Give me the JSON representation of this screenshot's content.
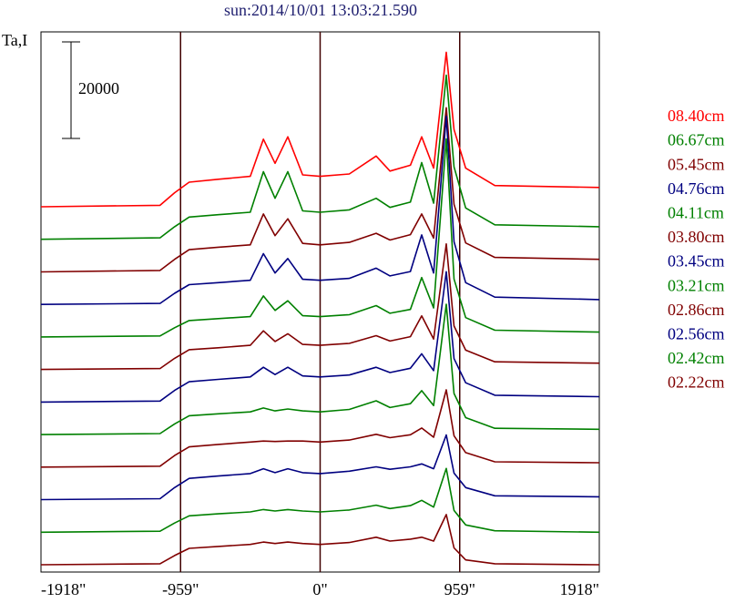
{
  "chart_data": {
    "type": "line",
    "title": "sun:2014/10/01 13:03:21.590",
    "ylabel": "Ta,I",
    "scale_bar": 20000,
    "xlim": [
      -1918,
      1918
    ],
    "xticks": [
      {
        "value": -1918,
        "label": "-1918\""
      },
      {
        "value": -959,
        "label": "-959\""
      },
      {
        "value": 0,
        "label": "0\""
      },
      {
        "value": 959,
        "label": "959\""
      },
      {
        "value": 1918,
        "label": "1918\""
      }
    ],
    "x": [
      -1918,
      -1100,
      -1000,
      -900,
      -700,
      -480,
      -390,
      -310,
      -222,
      -120,
      0,
      200,
      385,
      480,
      620,
      698,
      780,
      867,
      920,
      1000,
      1200,
      1918
    ],
    "series": [
      {
        "name": "08.40cm",
        "color": "#ff0000",
        "values": [
          0,
          300,
          2900,
          5100,
          5700,
          6300,
          14000,
          9000,
          14500,
          6600,
          6300,
          6800,
          10500,
          7400,
          8600,
          14500,
          8000,
          32000,
          16000,
          8000,
          4400,
          4000
        ]
      },
      {
        "name": "06.67cm",
        "color": "#008000",
        "values": [
          0,
          300,
          2600,
          4600,
          5100,
          5600,
          14000,
          8500,
          14000,
          5900,
          5600,
          6100,
          8500,
          6600,
          7700,
          15900,
          7500,
          34000,
          15000,
          6500,
          3000,
          2600
        ]
      },
      {
        "name": "05.45cm",
        "color": "#800000",
        "values": [
          0,
          300,
          2600,
          4600,
          5100,
          5600,
          12000,
          7500,
          11000,
          5900,
          5600,
          6100,
          8000,
          6600,
          7700,
          12000,
          7000,
          34000,
          14000,
          6000,
          3000,
          2600
        ]
      },
      {
        "name": "04.76cm",
        "color": "#000080",
        "values": [
          0,
          200,
          2300,
          4100,
          4500,
          5000,
          10500,
          6500,
          9500,
          5200,
          5000,
          5400,
          7500,
          5900,
          6800,
          14400,
          6500,
          39000,
          13000,
          4500,
          1500,
          1000
        ]
      },
      {
        "name": "04.11cm",
        "color": "#008000",
        "values": [
          0,
          200,
          1900,
          3400,
          3800,
          4200,
          8500,
          5500,
          7500,
          4400,
          4200,
          4600,
          6500,
          4900,
          5700,
          12300,
          6000,
          41000,
          12000,
          4000,
          1400,
          1000
        ]
      },
      {
        "name": "03.80cm",
        "color": "#800000",
        "values": [
          0,
          200,
          2300,
          4100,
          4500,
          5000,
          8000,
          5800,
          7400,
          5200,
          5000,
          5400,
          7000,
          5900,
          6800,
          11100,
          6300,
          26000,
          9000,
          4000,
          1600,
          1300
        ]
      },
      {
        "name": "03.45cm",
        "color": "#000080",
        "values": [
          0,
          200,
          2400,
          4200,
          4700,
          5200,
          7200,
          5700,
          7200,
          5400,
          5200,
          5600,
          7200,
          6100,
          7000,
          10000,
          6500,
          27000,
          9000,
          4000,
          1400,
          1100
        ]
      },
      {
        "name": "03.21cm",
        "color": "#008000",
        "values": [
          0,
          200,
          2200,
          3900,
          4300,
          4700,
          5500,
          4900,
          5300,
          4900,
          4700,
          5200,
          7000,
          5600,
          6400,
          9100,
          6000,
          27000,
          8500,
          3500,
          1300,
          1100
        ]
      },
      {
        "name": "02.86cm",
        "color": "#800000",
        "values": [
          0,
          200,
          2400,
          4200,
          4700,
          5200,
          5400,
          5300,
          5400,
          5400,
          5200,
          5600,
          6800,
          6100,
          6700,
          8100,
          6200,
          16000,
          6500,
          3000,
          1100,
          900
        ]
      },
      {
        "name": "02.56cm",
        "color": "#000080",
        "values": [
          0,
          200,
          2500,
          4400,
          4900,
          5400,
          6400,
          5600,
          6400,
          5600,
          5400,
          5900,
          6800,
          6300,
          6800,
          7400,
          6400,
          13400,
          5500,
          2500,
          800,
          600
        ]
      },
      {
        "name": "02.42cm",
        "color": "#008000",
        "values": [
          0,
          200,
          1900,
          3400,
          3800,
          4200,
          4700,
          4400,
          4700,
          4400,
          4200,
          4600,
          5600,
          4900,
          5500,
          6600,
          5200,
          13200,
          4500,
          1500,
          300,
          0
        ]
      },
      {
        "name": "02.22cm",
        "color": "#800000",
        "values": [
          0,
          200,
          1900,
          3400,
          3800,
          4200,
          4700,
          4400,
          4700,
          4400,
          4200,
          4600,
          5700,
          4900,
          5300,
          5700,
          4900,
          10400,
          3500,
          1000,
          200,
          0
        ]
      }
    ]
  }
}
